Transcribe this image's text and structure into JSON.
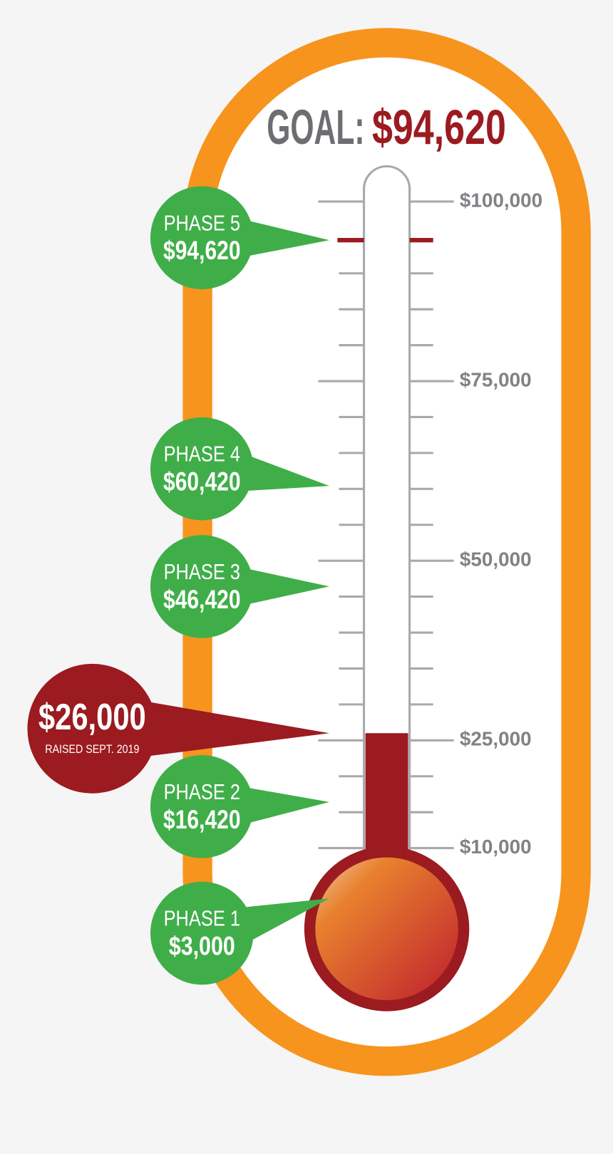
{
  "chart_data": {
    "type": "thermometer",
    "title": "GOAL:",
    "goal": {
      "value": 94620,
      "label": "$94,620"
    },
    "raised": {
      "value": 26000,
      "label": "$26,000",
      "note": "RAISED SEPT. 2019"
    },
    "phases": [
      {
        "name": "PHASE 1",
        "value": 3000,
        "label": "$3,000"
      },
      {
        "name": "PHASE 2",
        "value": 16420,
        "label": "$16,420"
      },
      {
        "name": "PHASE 3",
        "value": 46420,
        "label": "$46,420"
      },
      {
        "name": "PHASE 4",
        "value": 60420,
        "label": "$60,420"
      },
      {
        "name": "PHASE 5",
        "value": 94620,
        "label": "$94,620"
      }
    ],
    "ylim": [
      0,
      105000
    ],
    "yticks": [
      {
        "value": 10000,
        "label": "$10,000"
      },
      {
        "value": 25000,
        "label": "$25,000"
      },
      {
        "value": 50000,
        "label": "$50,000"
      },
      {
        "value": 75000,
        "label": "$75,000"
      },
      {
        "value": 100000,
        "label": "$100,000"
      }
    ],
    "minor_ticks": [
      15000,
      20000,
      30000,
      35000,
      40000,
      45000,
      55000,
      60000,
      65000,
      70000,
      80000,
      85000,
      90000
    ],
    "phase_color": "#3fae49",
    "raised_color": "#9b1b20",
    "frame_color": "#f7941d"
  }
}
